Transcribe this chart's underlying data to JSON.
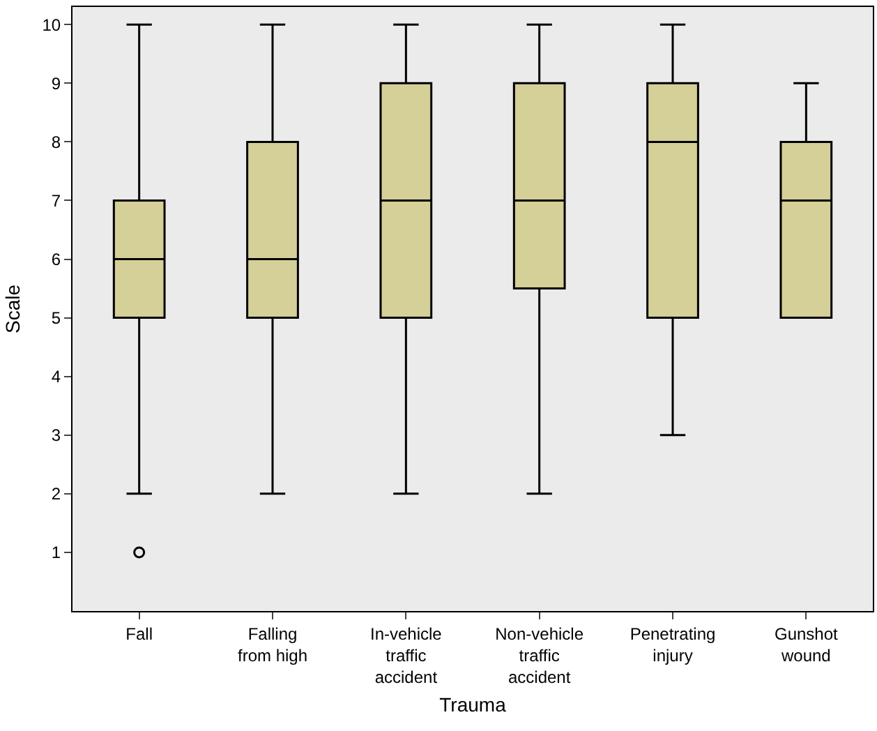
{
  "chart_data": {
    "type": "box",
    "xlabel": "Trauma",
    "ylabel": "Scale",
    "categories": [
      "Fall",
      "Falling\nfrom high",
      "In-vehicle\ntraffic\naccident",
      "Non-vehicle\ntraffic\naccident",
      "Penetrating\ninjury",
      "Gunshot\nwound"
    ],
    "boxes": [
      {
        "low": 2,
        "q1": 5,
        "median": 6,
        "q3": 7,
        "high": 10,
        "outliers": [
          1
        ]
      },
      {
        "low": 2,
        "q1": 5,
        "median": 6,
        "q3": 8,
        "high": 10
      },
      {
        "low": 2,
        "q1": 5,
        "median": 7,
        "q3": 9,
        "high": 10
      },
      {
        "low": 2,
        "q1": 5.5,
        "median": 7,
        "q3": 9,
        "high": 10
      },
      {
        "low": 3,
        "q1": 5,
        "median": 8,
        "q3": 9,
        "high": 10
      },
      {
        "low": 5,
        "q1": 5,
        "median": 7,
        "q3": 8,
        "high": 9
      }
    ],
    "color": "#d5cf98",
    "ylim": [
      0,
      10.3
    ],
    "yticks": [
      1,
      2,
      3,
      4,
      5,
      6,
      7,
      8,
      9,
      10
    ],
    "marker": "circle"
  }
}
